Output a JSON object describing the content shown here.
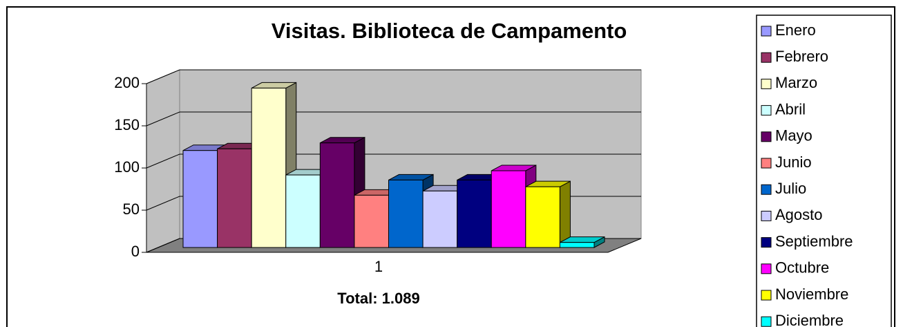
{
  "chart_data": {
    "type": "bar3d",
    "title": "Visitas. Biblioteca de Campamento",
    "categories": [
      "1"
    ],
    "xlabel": "Total: 1.089",
    "series": [
      {
        "name": "Enero",
        "color": "#9999ff",
        "values": [
          115
        ]
      },
      {
        "name": "Febrero",
        "color": "#993366",
        "values": [
          117
        ]
      },
      {
        "name": "Marzo",
        "color": "#ffffcc",
        "values": [
          189
        ]
      },
      {
        "name": "Abril",
        "color": "#ccffff",
        "values": [
          86
        ]
      },
      {
        "name": "Mayo",
        "color": "#660066",
        "values": [
          124
        ]
      },
      {
        "name": "Junio",
        "color": "#ff8080",
        "values": [
          62
        ]
      },
      {
        "name": "Julio",
        "color": "#0066cc",
        "values": [
          80
        ]
      },
      {
        "name": "Agosto",
        "color": "#ccccff",
        "values": [
          67
        ]
      },
      {
        "name": "Septiembre",
        "color": "#000080",
        "values": [
          80
        ]
      },
      {
        "name": "Octubre",
        "color": "#ff00ff",
        "values": [
          91
        ]
      },
      {
        "name": "Noviembre",
        "color": "#ffff00",
        "values": [
          72
        ]
      },
      {
        "name": "Diciembre",
        "color": "#00ffff",
        "values": [
          6
        ]
      }
    ],
    "ylim": [
      0,
      200
    ],
    "yticks": [
      0,
      50,
      100,
      150,
      200
    ],
    "grid": true,
    "legend": "right"
  }
}
